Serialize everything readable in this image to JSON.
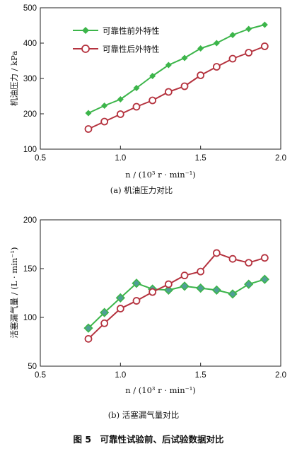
{
  "figure_title": "图 5　可靠性试验前、后试验数据对比",
  "chart_data": [
    {
      "type": "line",
      "caption": "(a)  机油压力对比",
      "xlabel": "n / (10³ r · min⁻¹)",
      "ylabel": "机油压力 / kPa",
      "xlim": [
        0.5,
        2.0
      ],
      "ylim": [
        100,
        500
      ],
      "xticks": [
        "0.5",
        "1.0",
        "1.5",
        "2.0"
      ],
      "yticks": [
        "100",
        "200",
        "300",
        "400",
        "500"
      ],
      "legend_position": "top-left",
      "series": [
        {
          "name": "可靠性前外特性",
          "color": "#3cb54a",
          "marker": "diamond",
          "x": [
            0.8,
            0.9,
            1.0,
            1.1,
            1.2,
            1.3,
            1.4,
            1.5,
            1.6,
            1.7,
            1.8,
            1.9
          ],
          "y": [
            202,
            223,
            241,
            273,
            307,
            338,
            358,
            385,
            400,
            423,
            440,
            452
          ]
        },
        {
          "name": "可靠性后外特性",
          "color": "#b5333f",
          "marker": "open-circle",
          "x": [
            0.8,
            0.9,
            1.0,
            1.1,
            1.2,
            1.3,
            1.4,
            1.5,
            1.6,
            1.7,
            1.8,
            1.9
          ],
          "y": [
            157,
            178,
            199,
            220,
            238,
            262,
            278,
            309,
            333,
            356,
            373,
            391
          ]
        }
      ]
    },
    {
      "type": "line",
      "caption": "(b)  活塞漏气量对比",
      "xlabel": "n / (10³ r · min⁻¹)",
      "ylabel": "活塞漏气量 / (L · min⁻¹)",
      "xlim": [
        0.5,
        2.0
      ],
      "ylim": [
        50,
        200
      ],
      "xticks": [
        "0.5",
        "1.0",
        "1.5",
        "2.0"
      ],
      "yticks": [
        "50",
        "100",
        "150",
        "200"
      ],
      "legend_position": "none",
      "series": [
        {
          "color": "#3cb54a",
          "marker": "diamond-filled-teal",
          "x": [
            0.8,
            0.9,
            1.0,
            1.1,
            1.2,
            1.3,
            1.4,
            1.5,
            1.6,
            1.7,
            1.8,
            1.9
          ],
          "y": [
            89,
            105,
            120,
            135,
            129,
            128,
            132,
            130,
            128,
            124,
            134,
            139
          ]
        },
        {
          "color": "#b5333f",
          "marker": "open-circle",
          "x": [
            0.8,
            0.9,
            1.0,
            1.1,
            1.2,
            1.3,
            1.4,
            1.5,
            1.6,
            1.7,
            1.8,
            1.9
          ],
          "y": [
            78,
            94,
            109,
            117,
            126,
            134,
            143,
            147,
            166,
            160,
            156,
            161
          ]
        }
      ]
    }
  ]
}
